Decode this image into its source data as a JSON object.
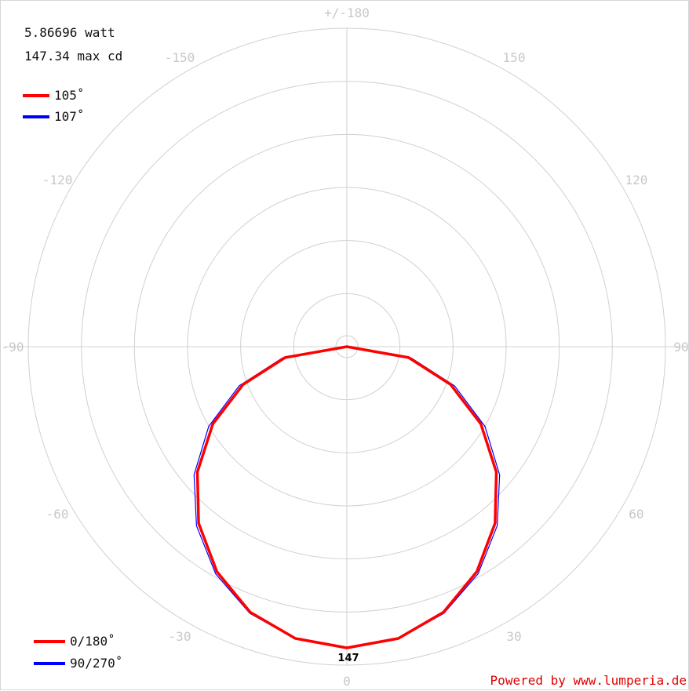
{
  "chart_data": {
    "type": "polar",
    "header": {
      "power": "5.86696 watt",
      "max_cd": "147.34 max cd"
    },
    "angle_labels": [
      "+/-180",
      "-150",
      "150",
      "-120",
      "120",
      "-90",
      "90",
      "-60",
      "60",
      "-30",
      "30",
      "0"
    ],
    "beam_legend": [
      {
        "label": "105˚",
        "color": "#ff0000"
      },
      {
        "label": "107˚",
        "color": "#0000ff"
      }
    ],
    "plane_legend": [
      {
        "label": "0/180˚",
        "color": "#ff0000"
      },
      {
        "label": "90/270˚",
        "color": "#0000ff"
      }
    ],
    "rings": 6,
    "max_value": 147,
    "peak_label": "147",
    "series": [
      {
        "name": "0/180˚",
        "color": "#ff0000",
        "beam_angle": 105,
        "angles": [
          0,
          10,
          20,
          30,
          40,
          50,
          60,
          70,
          80,
          90
        ],
        "values": [
          147,
          144.6,
          137.9,
          126.8,
          112.5,
          95.2,
          75.5,
          53.8,
          30.6,
          0
        ]
      },
      {
        "name": "90/270˚",
        "color": "#0000ff",
        "beam_angle": 107,
        "angles": [
          0,
          10,
          20,
          30,
          40,
          50,
          60,
          70,
          80,
          90
        ],
        "values": [
          147,
          144.8,
          138.5,
          128.0,
          114.1,
          97.3,
          77.8,
          55.9,
          32.0,
          0
        ]
      }
    ],
    "credit": "Powered by www.lumperia.de"
  }
}
